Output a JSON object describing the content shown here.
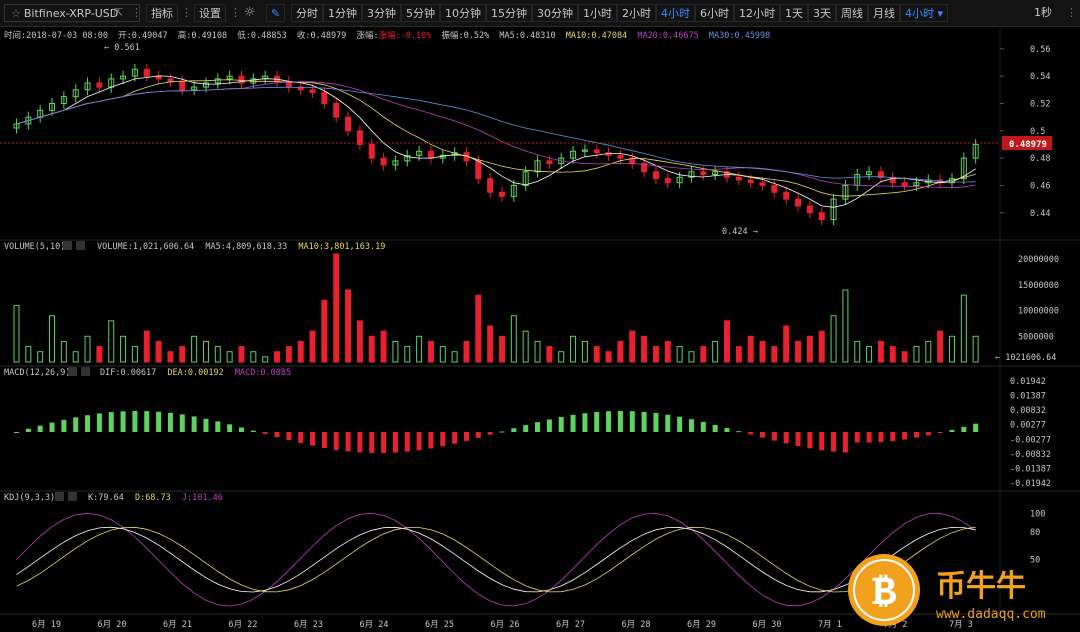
{
  "toolbar": {
    "symbol": "Bitfinex-XRP-USD",
    "indicators_label": "指标",
    "settings_label": "设置",
    "periods": [
      "分时",
      "1分钟",
      "3分钟",
      "5分钟",
      "10分钟",
      "15分钟",
      "30分钟",
      "1小时",
      "2小时",
      "4小时",
      "6小时",
      "12小时",
      "1天",
      "3天",
      "周线",
      "月线"
    ],
    "active_period": "4小时",
    "period_dropdown": "4小时",
    "refresh_label": "1秒"
  },
  "main_info": {
    "time": "时间:2018-07-03 08:00",
    "open": "开:0.49047",
    "high": "高:0.49108",
    "low": "低:0.48853",
    "close": "收:0.48979",
    "change": "涨幅:-0.10%",
    "amplitude": "振幅:0.52%",
    "ma5": "MA5:0.48310",
    "ma10": "MA10:0.47084",
    "ma20": "MA20:0.46675",
    "ma30": "MA30:0.45998",
    "max_marker": "← 0.561",
    "min_marker": "0.424 →",
    "current_price": "0.48979",
    "y_ticks": [
      "0.56",
      "0.54",
      "0.52",
      "0.5",
      "0.48",
      "0.46",
      "0.44"
    ]
  },
  "volume_info": {
    "label": "VOLUME(5,10)",
    "volume": "VOLUME:1,021,606.64",
    "ma5": "MA5:4,809,618.33",
    "ma10": "MA10:3,801,163.19",
    "current": "← 1021606.64",
    "y_ticks": [
      "20000000",
      "15000000",
      "10000000",
      "5000000"
    ]
  },
  "macd_info": {
    "label": "MACD(12,26,9)",
    "dif": "DIF:0.00617",
    "dea": "DEA:0.00192",
    "macd": "MACD:0.0085",
    "y_ticks": [
      "0.01942",
      "0.01387",
      "0.00832",
      "0.00277",
      "-0.00277",
      "-0.00832",
      "-0.01387",
      "-0.01942"
    ]
  },
  "kdj_info": {
    "label": "KDJ(9,3,3)",
    "k": "K:79.64",
    "d": "D:68.73",
    "j": "J:101.46",
    "y_ticks": [
      "100",
      "80",
      "50"
    ]
  },
  "x_axis": [
    "6月 19",
    "6月 20",
    "6月 21",
    "6月 22",
    "6月 23",
    "6月 24",
    "6月 25",
    "6月 26",
    "6月 27",
    "6月 28",
    "6月 29",
    "6月 30",
    "7月 1",
    "7月 2",
    "7月 3"
  ],
  "watermark": {
    "brand": "币牛牛",
    "url": "www.dadaqq.com"
  },
  "colors": {
    "up": "#5fd35f",
    "down": "#e8212e",
    "ma5": "#ffffff",
    "ma10": "#e6d96a",
    "ma20": "#c040c0",
    "ma30": "#6a8fe0",
    "active": "#3b8cff"
  }
}
